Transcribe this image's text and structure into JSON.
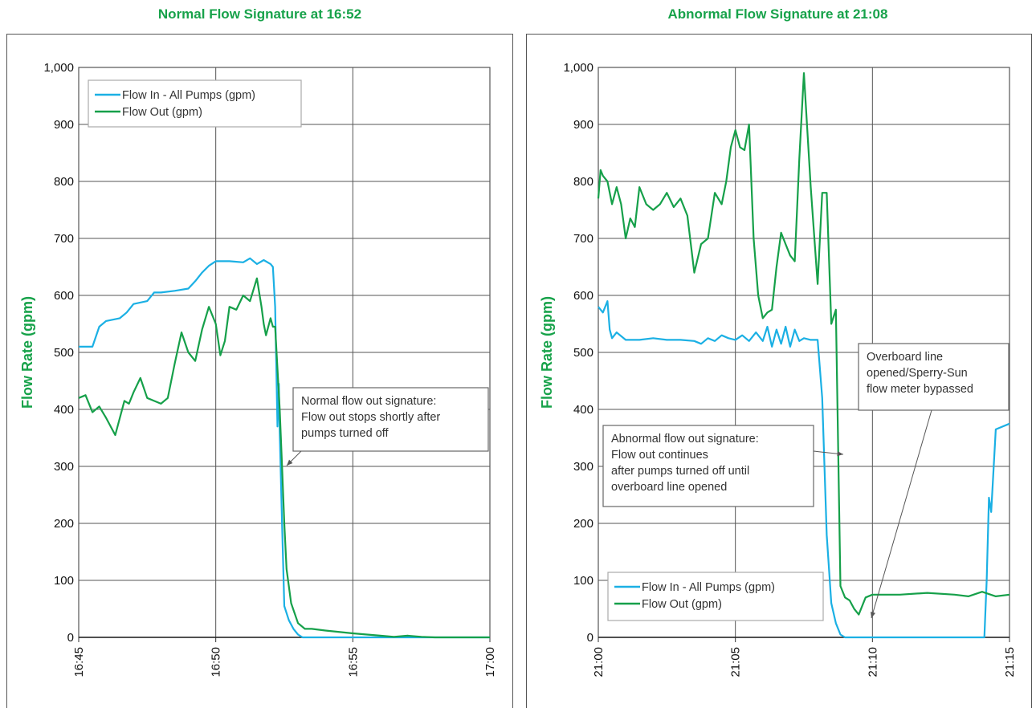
{
  "colors": {
    "flow_in": "#1bb0e4",
    "flow_out": "#16a04a",
    "title": "#17a24a",
    "grid": "#555555"
  },
  "chart_data": [
    {
      "type": "line",
      "title": "Normal Flow Signature at 16:52",
      "ylabel": "Flow Rate (gpm)",
      "xlabel": "",
      "ylim": [
        0,
        1000
      ],
      "yticks": [
        "0",
        "100",
        "200",
        "300",
        "400",
        "500",
        "600",
        "700",
        "800",
        "900",
        "1,000"
      ],
      "xlim": [
        "16:45",
        "17:00"
      ],
      "xticks": [
        "16:45",
        "16:50",
        "16:55",
        "17:00"
      ],
      "grid": true,
      "legend": "top-left",
      "series": [
        {
          "name": "Flow In - All Pumps (gpm)",
          "color": "flow_in",
          "x": [
            "16:45:00",
            "16:45:30",
            "16:45:45",
            "16:46:00",
            "16:46:30",
            "16:46:45",
            "16:47:00",
            "16:47:30",
            "16:47:45",
            "16:48:00",
            "16:48:30",
            "16:49:00",
            "16:49:15",
            "16:49:30",
            "16:49:45",
            "16:50:00",
            "16:50:30",
            "16:51:00",
            "16:51:15",
            "16:51:30",
            "16:51:45",
            "16:52:00",
            "16:52:05",
            "16:52:10",
            "16:52:15",
            "16:52:18",
            "16:52:20",
            "16:52:25",
            "16:52:30",
            "16:52:40",
            "16:52:50",
            "16:53:00",
            "16:53:10",
            "16:54:00",
            "16:55:00",
            "16:57:00",
            "17:00:00"
          ],
          "values": [
            510,
            510,
            545,
            555,
            560,
            570,
            585,
            590,
            605,
            605,
            608,
            612,
            625,
            640,
            652,
            660,
            660,
            658,
            665,
            655,
            662,
            655,
            650,
            580,
            370,
            445,
            360,
            200,
            55,
            30,
            15,
            5,
            0,
            0,
            0,
            0,
            0
          ]
        },
        {
          "name": "Flow Out (gpm)",
          "color": "flow_out",
          "x": [
            "16:45:00",
            "16:45:15",
            "16:45:30",
            "16:45:45",
            "16:46:00",
            "16:46:20",
            "16:46:40",
            "16:46:50",
            "16:47:00",
            "16:47:15",
            "16:47:30",
            "16:47:45",
            "16:48:00",
            "16:48:15",
            "16:48:30",
            "16:48:45",
            "16:49:00",
            "16:49:15",
            "16:49:30",
            "16:49:45",
            "16:50:00",
            "16:50:10",
            "16:50:20",
            "16:50:30",
            "16:50:45",
            "16:51:00",
            "16:51:15",
            "16:51:30",
            "16:51:40",
            "16:51:45",
            "16:51:50",
            "16:52:00",
            "16:52:05",
            "16:52:10",
            "16:52:20",
            "16:52:25",
            "16:52:30",
            "16:52:35",
            "16:52:45",
            "16:53:00",
            "16:53:15",
            "16:53:30",
            "16:54:00",
            "16:55:00",
            "16:56:00",
            "16:56:30",
            "16:57:00",
            "16:57:30",
            "16:58:00",
            "17:00:00"
          ],
          "values": [
            420,
            425,
            395,
            405,
            385,
            355,
            415,
            410,
            430,
            455,
            420,
            415,
            410,
            420,
            480,
            535,
            500,
            485,
            540,
            580,
            550,
            495,
            520,
            580,
            575,
            600,
            590,
            630,
            580,
            550,
            530,
            560,
            545,
            545,
            400,
            300,
            200,
            120,
            60,
            25,
            15,
            15,
            12,
            7,
            3,
            1,
            3,
            1,
            0,
            0
          ]
        }
      ],
      "annotation": {
        "lines": [
          "Normal flow out signature:",
          "Flow out stops shortly after",
          "pumps turned off"
        ]
      }
    },
    {
      "type": "line",
      "title": "Abnormal Flow Signature at 21:08",
      "ylabel": "Flow Rate (gpm)",
      "xlabel": "",
      "ylim": [
        0,
        1000
      ],
      "yticks": [
        "0",
        "100",
        "200",
        "300",
        "400",
        "500",
        "600",
        "700",
        "800",
        "900",
        "1,000"
      ],
      "xlim": [
        "21:00",
        "21:15"
      ],
      "xticks": [
        "21:00",
        "21:05",
        "21:10",
        "21:15"
      ],
      "grid": true,
      "legend": "bottom-left",
      "series": [
        {
          "name": "Flow In - All Pumps (gpm)",
          "color": "flow_in",
          "x": [
            "21:00:00",
            "21:00:10",
            "21:00:20",
            "21:00:25",
            "21:00:30",
            "21:00:40",
            "21:01:00",
            "21:01:30",
            "21:02:00",
            "21:02:30",
            "21:03:00",
            "21:03:30",
            "21:03:45",
            "21:04:00",
            "21:04:15",
            "21:04:30",
            "21:04:45",
            "21:05:00",
            "21:05:15",
            "21:05:30",
            "21:05:45",
            "21:06:00",
            "21:06:10",
            "21:06:20",
            "21:06:30",
            "21:06:40",
            "21:06:50",
            "21:07:00",
            "21:07:10",
            "21:07:20",
            "21:07:30",
            "21:07:45",
            "21:08:00",
            "21:08:10",
            "21:08:15",
            "21:08:20",
            "21:08:30",
            "21:08:40",
            "21:08:50",
            "21:09:00",
            "21:10:00",
            "21:13:00",
            "21:14:05",
            "21:14:10",
            "21:14:15",
            "21:14:20",
            "21:14:30",
            "21:15:00"
          ],
          "values": [
            580,
            570,
            590,
            540,
            525,
            535,
            522,
            522,
            525,
            522,
            522,
            520,
            515,
            525,
            520,
            530,
            525,
            522,
            530,
            520,
            535,
            520,
            545,
            510,
            540,
            515,
            545,
            510,
            540,
            520,
            525,
            522,
            522,
            420,
            300,
            180,
            60,
            25,
            5,
            0,
            0,
            0,
            0,
            100,
            245,
            220,
            365,
            375
          ]
        },
        {
          "name": "Flow Out (gpm)",
          "color": "flow_out",
          "x": [
            "21:00:00",
            "21:00:05",
            "21:00:10",
            "21:00:20",
            "21:00:30",
            "21:00:40",
            "21:00:50",
            "21:01:00",
            "21:01:10",
            "21:01:20",
            "21:01:30",
            "21:01:45",
            "21:02:00",
            "21:02:15",
            "21:02:30",
            "21:02:45",
            "21:03:00",
            "21:03:15",
            "21:03:30",
            "21:03:45",
            "21:04:00",
            "21:04:15",
            "21:04:30",
            "21:04:40",
            "21:04:50",
            "21:05:00",
            "21:05:10",
            "21:05:20",
            "21:05:30",
            "21:05:40",
            "21:05:50",
            "21:06:00",
            "21:06:10",
            "21:06:20",
            "21:06:30",
            "21:06:40",
            "21:06:50",
            "21:07:00",
            "21:07:10",
            "21:07:20",
            "21:07:30",
            "21:07:45",
            "21:08:00",
            "21:08:10",
            "21:08:20",
            "21:08:30",
            "21:08:40",
            "21:08:50",
            "21:09:00",
            "21:09:10",
            "21:09:20",
            "21:09:30",
            "21:09:45",
            "21:10:00",
            "21:10:15",
            "21:10:30",
            "21:11:00",
            "21:12:00",
            "21:13:00",
            "21:13:30",
            "21:14:00",
            "21:14:30",
            "21:15:00"
          ],
          "values": [
            770,
            820,
            810,
            800,
            760,
            790,
            760,
            700,
            735,
            720,
            790,
            760,
            750,
            760,
            780,
            755,
            770,
            740,
            640,
            690,
            700,
            780,
            760,
            800,
            860,
            890,
            860,
            855,
            900,
            700,
            600,
            560,
            570,
            575,
            650,
            710,
            690,
            670,
            660,
            840,
            990,
            790,
            620,
            780,
            780,
            550,
            575,
            90,
            70,
            65,
            50,
            40,
            70,
            75,
            75,
            75,
            75,
            78,
            75,
            72,
            80,
            72,
            75
          ]
        }
      ],
      "annotations": [
        {
          "lines": [
            "Abnormal flow out signature:",
            "Flow out continues",
            "after pumps turned off until",
            "overboard line opened"
          ]
        },
        {
          "lines": [
            "Overboard line",
            "opened/Sperry-Sun",
            "flow meter bypassed"
          ]
        }
      ]
    }
  ]
}
